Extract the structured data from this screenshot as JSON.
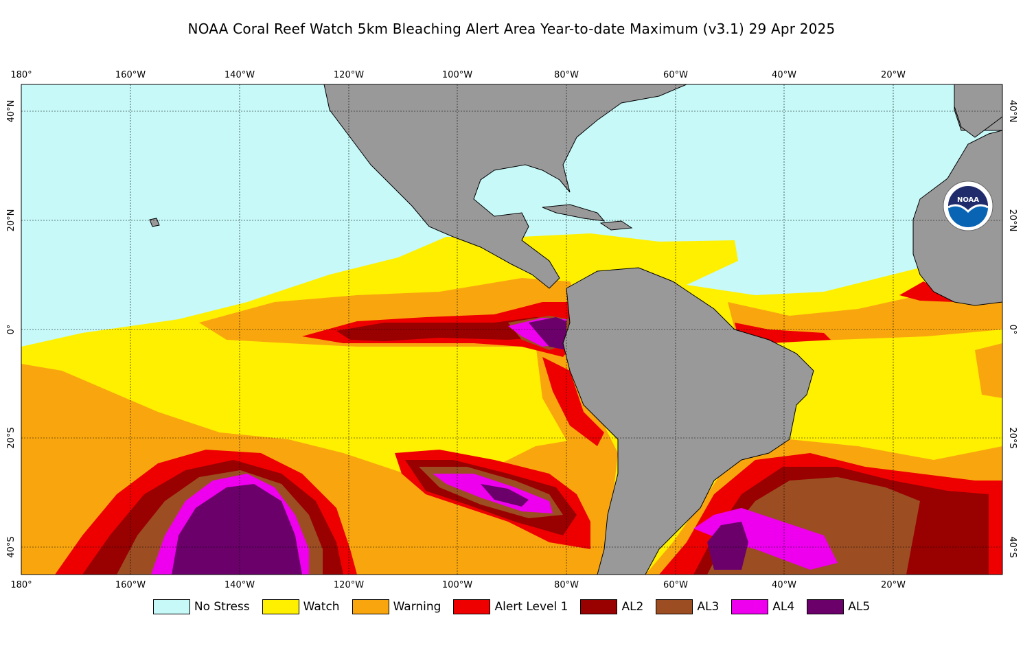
{
  "title": "NOAA Coral Reef Watch 5km Bleaching Alert Area Year-to-date Maximum  (v3.1)   29 Apr 2025",
  "logo": {
    "icon": "noaa-logo-icon",
    "text": "NOAA"
  },
  "map": {
    "lon_ticks": [
      "180°",
      "160°W",
      "140°W",
      "120°W",
      "100°W",
      "80°W",
      "60°W",
      "40°W",
      "20°W"
    ],
    "lat_ticks_left": [
      "40°N",
      "20°N",
      "0°",
      "20°S",
      "40°S"
    ],
    "lat_ticks_right": [
      "40°N",
      "20°N",
      "0°",
      "20°S",
      "40°S"
    ],
    "colors": {
      "no_stress": "#c6f9f8",
      "watch": "#fff000",
      "warning": "#f9a60e",
      "alert1": "#ee0000",
      "al2": "#990000",
      "al3": "#9c4d22",
      "al4": "#ee00ee",
      "al5": "#6b006b",
      "land": "#999999"
    }
  },
  "legend": [
    {
      "label": "No Stress",
      "color": "#c6f9f8"
    },
    {
      "label": "Watch",
      "color": "#fff000"
    },
    {
      "label": "Warning",
      "color": "#f9a60e"
    },
    {
      "label": "Alert Level 1",
      "color": "#ee0000"
    },
    {
      "label": "AL2",
      "color": "#990000"
    },
    {
      "label": "AL3",
      "color": "#9c4d22"
    },
    {
      "label": "AL4",
      "color": "#ee00ee"
    },
    {
      "label": "AL5",
      "color": "#6b006b"
    }
  ]
}
